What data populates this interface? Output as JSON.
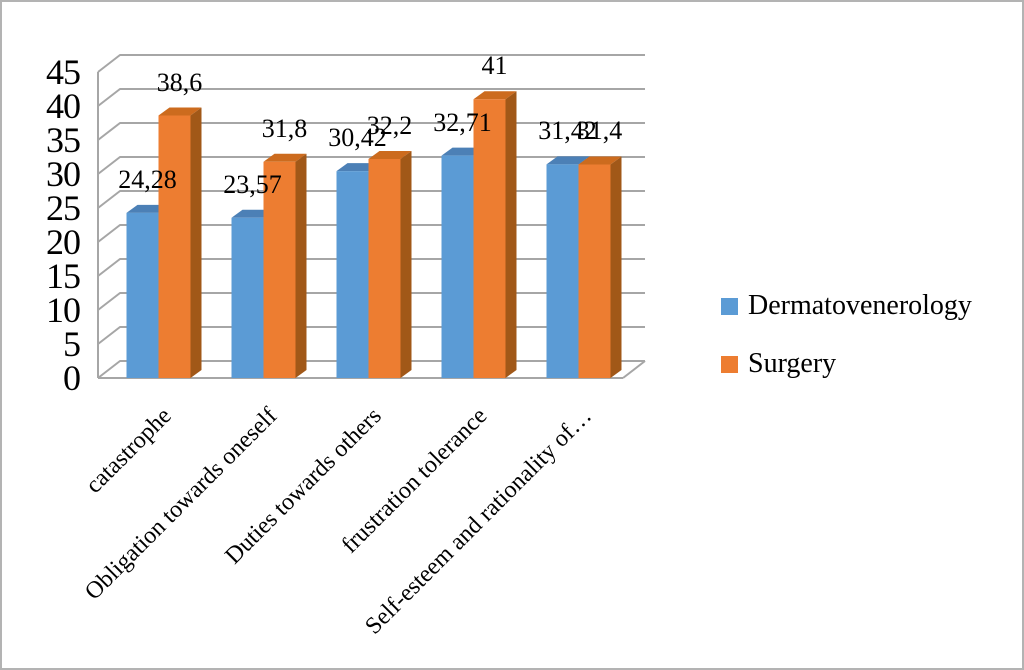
{
  "frame": {
    "background": "#ffffff",
    "border_color": "#b3b3b3"
  },
  "chart_data": {
    "type": "bar",
    "style": "3d-clustered-column",
    "title": "",
    "xlabel": "",
    "ylabel": "",
    "ylim": [
      0,
      45
    ],
    "y_ticks": [
      "0",
      "5",
      "10",
      "15",
      "20",
      "25",
      "30",
      "35",
      "40",
      "45"
    ],
    "grid": true,
    "grid_color": "#a6a6a6",
    "legend_position": "right",
    "categories": [
      "catastrophe",
      "Obligation towards oneself",
      "Duties towards others",
      "frustration tolerance",
      "Self-esteem and rationality of…"
    ],
    "series": [
      {
        "name": "Dermatovenerology",
        "values": [
          24.28,
          23.57,
          30.42,
          32.71,
          31.42
        ],
        "value_labels": [
          "24,28",
          "23,57",
          "30,42",
          "32,71",
          "31,42"
        ],
        "color": "#5b9bd5",
        "color_top": "#4c80b6",
        "color_side": "#3d6a99"
      },
      {
        "name": "Surgery",
        "values": [
          38.6,
          31.8,
          32.2,
          41,
          31.4
        ],
        "value_labels": [
          "38,6",
          "31,8",
          "32,2",
          "41",
          "31,4"
        ],
        "color": "#ed7d31",
        "color_top": "#cc6b1e",
        "color_side": "#a15818"
      }
    ]
  }
}
